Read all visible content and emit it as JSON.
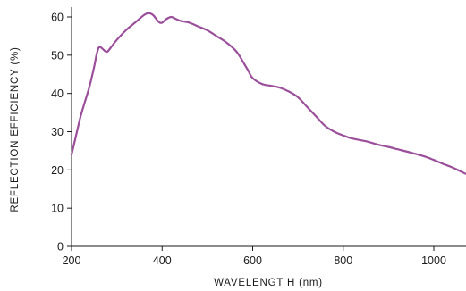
{
  "chart_data": {
    "type": "line",
    "title": "",
    "xlabel": "WAVELENGT H (nm)",
    "ylabel": "REFLECTION EFFICIENCY (%)",
    "xlim": [
      200,
      1070
    ],
    "ylim": [
      0,
      62
    ],
    "x_ticks": [
      200,
      400,
      600,
      800,
      1000
    ],
    "y_ticks": [
      0,
      10,
      20,
      30,
      40,
      50,
      60
    ],
    "grid": false,
    "line_color": "#9b4f9b",
    "series": [
      {
        "x": [
          200,
          210,
          220,
          230,
          240,
          250,
          255,
          260,
          265,
          270,
          275,
          280,
          290,
          300,
          320,
          340,
          360,
          370,
          380,
          390,
          395,
          400,
          405,
          410,
          420,
          430,
          440,
          460,
          480,
          500,
          520,
          540,
          560,
          570,
          580,
          590,
          600,
          620,
          640,
          660,
          680,
          700,
          720,
          740,
          760,
          780,
          800,
          820,
          850,
          880,
          900,
          920,
          950,
          980,
          1000,
          1020,
          1040,
          1070
        ],
        "y": [
          24,
          29,
          34,
          38,
          42,
          47,
          50,
          52,
          52,
          51.5,
          51,
          51,
          52.5,
          54,
          56.5,
          58.5,
          60.5,
          61,
          60.5,
          59,
          58.5,
          58.5,
          59,
          59.5,
          60,
          59.5,
          59,
          58.5,
          57.5,
          56.5,
          55,
          53.5,
          51.5,
          50,
          48,
          46,
          44,
          42.5,
          42,
          41.5,
          40.5,
          39,
          36.5,
          34,
          31.5,
          30,
          29,
          28.2,
          27.5,
          26.5,
          26,
          25.4,
          24.5,
          23.5,
          22.6,
          21.6,
          20.7,
          19
        ]
      }
    ]
  }
}
